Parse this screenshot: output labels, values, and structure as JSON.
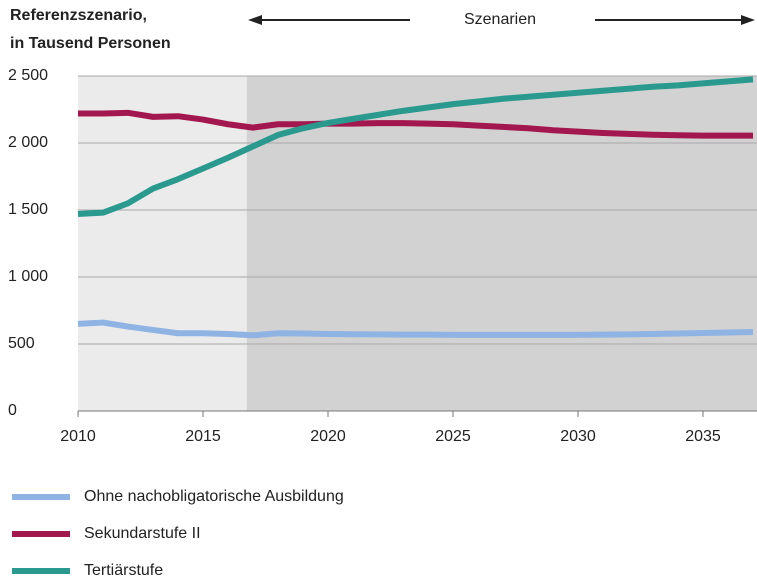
{
  "chart_data": {
    "type": "line",
    "title": "Referenzszenario,",
    "subtitle": "in Tausend Personen",
    "annotation": "Szenarien",
    "x": [
      2010,
      2011,
      2012,
      2013,
      2014,
      2015,
      2016,
      2017,
      2018,
      2019,
      2020,
      2021,
      2022,
      2023,
      2024,
      2025,
      2026,
      2027,
      2028,
      2029,
      2030,
      2031,
      2032,
      2033,
      2034,
      2035,
      2036,
      2037
    ],
    "series": [
      {
        "name": "Ohne nachobligatorische Ausbildung",
        "color": "#8fb3e3",
        "values": [
          650,
          660,
          630,
          605,
          580,
          580,
          575,
          565,
          580,
          578,
          575,
          573,
          572,
          570,
          570,
          568,
          568,
          568,
          568,
          568,
          568,
          570,
          572,
          575,
          578,
          582,
          586,
          590
        ]
      },
      {
        "name": "Sekundarstufe II",
        "color": "#a3174f",
        "values": [
          2220,
          2220,
          2225,
          2195,
          2200,
          2175,
          2140,
          2115,
          2140,
          2140,
          2145,
          2145,
          2148,
          2148,
          2145,
          2140,
          2130,
          2120,
          2110,
          2095,
          2085,
          2075,
          2068,
          2062,
          2058,
          2055,
          2055,
          2055
        ]
      },
      {
        "name": "Tertiärstufe",
        "color": "#2a9a8f",
        "values": [
          1470,
          1480,
          1550,
          1660,
          1730,
          1810,
          1890,
          1975,
          2060,
          2110,
          2150,
          2180,
          2210,
          2240,
          2265,
          2290,
          2310,
          2330,
          2345,
          2360,
          2375,
          2390,
          2405,
          2420,
          2430,
          2445,
          2460,
          2475
        ]
      }
    ],
    "scenario_start": 2016.75,
    "xlim": [
      2010,
      2037
    ],
    "xticks": [
      2010,
      2015,
      2020,
      2025,
      2030,
      2035
    ],
    "ylim": [
      0,
      2500
    ],
    "yticks": [
      0,
      500,
      {
        "value": 1000,
        "label": "1 000"
      },
      {
        "value": 1500,
        "label": "1 500"
      },
      {
        "value": 2000,
        "label": "2 000"
      },
      {
        "value": 2500,
        "label": "2 500"
      }
    ],
    "grid": true
  }
}
